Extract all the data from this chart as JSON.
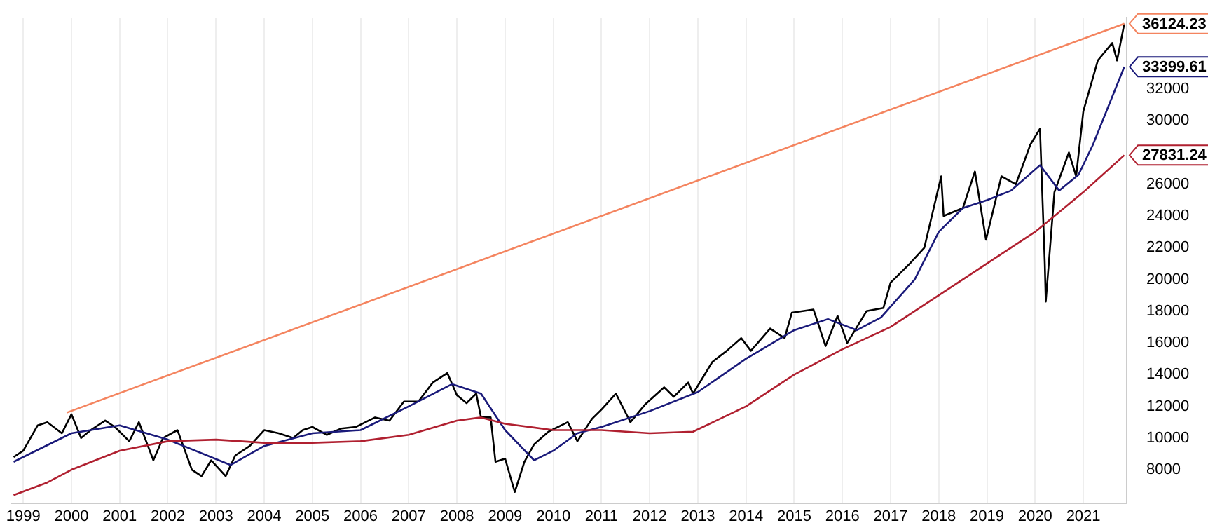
{
  "chart_data": {
    "type": "line",
    "xlim": [
      1998.75,
      2021.9
    ],
    "xticks": [
      {
        "value": 1999,
        "label": "1999"
      },
      {
        "value": 2000,
        "label": "2000"
      },
      {
        "value": 2001,
        "label": "2001"
      },
      {
        "value": 2002,
        "label": "2002"
      },
      {
        "value": 2003,
        "label": "2003"
      },
      {
        "value": 2004,
        "label": "2004"
      },
      {
        "value": 2005,
        "label": "2005"
      },
      {
        "value": 2006,
        "label": "2006"
      },
      {
        "value": 2007,
        "label": "2007"
      },
      {
        "value": 2008,
        "label": "2008"
      },
      {
        "value": 2009,
        "label": "2009"
      },
      {
        "value": 2010,
        "label": "2010"
      },
      {
        "value": 2011,
        "label": "2011"
      },
      {
        "value": 2012,
        "label": "2012"
      },
      {
        "value": 2013,
        "label": "2013"
      },
      {
        "value": 2014,
        "label": "2014"
      },
      {
        "value": 2015,
        "label": "2015"
      },
      {
        "value": 2016,
        "label": "2016"
      },
      {
        "value": 2017,
        "label": "2017"
      },
      {
        "value": 2018,
        "label": "2018"
      },
      {
        "value": 2019,
        "label": "2019"
      },
      {
        "value": 2020,
        "label": "2020"
      },
      {
        "value": 2021,
        "label": "2021"
      }
    ],
    "ylim": [
      5900,
      36500
    ],
    "yticks": [
      8000,
      10000,
      12000,
      14000,
      16000,
      18000,
      20000,
      22000,
      24000,
      26000,
      30000,
      32000
    ],
    "grid": "x",
    "marker": "none",
    "line_style": "solid",
    "series": [
      {
        "color": "#f4845f",
        "x": [
          1999.9,
          2021.85
        ],
        "values": [
          11600,
          36124.23
        ],
        "value_labels": [
          null,
          "36124.23"
        ]
      },
      {
        "color": "#b02030",
        "x": [
          1998.8,
          1999.5,
          2000.0,
          2001.0,
          2002.0,
          2003.0,
          2004.0,
          2005.0,
          2006.0,
          2007.0,
          2008.0,
          2008.5,
          2009.0,
          2010.0,
          2011.0,
          2012.0,
          2012.9,
          2014.0,
          2015.0,
          2016.0,
          2017.0,
          2018.0,
          2019.0,
          2020.0,
          2021.0,
          2021.85
        ],
        "values": [
          6400,
          7200,
          8000,
          9200,
          9800,
          9900,
          9700,
          9700,
          9800,
          10200,
          11100,
          11300,
          10900,
          10500,
          10500,
          10300,
          10400,
          12000,
          14000,
          15600,
          17000,
          19000,
          21000,
          23000,
          25500,
          27831.24
        ],
        "value_labels": [
          null,
          null,
          null,
          null,
          null,
          null,
          null,
          null,
          null,
          null,
          null,
          null,
          null,
          null,
          null,
          null,
          null,
          null,
          null,
          null,
          null,
          null,
          null,
          null,
          null,
          "27831.24"
        ]
      },
      {
        "color": "#1a1a7a",
        "x": [
          1998.8,
          2000.0,
          2001.0,
          2002.0,
          2003.3,
          2004.0,
          2005.0,
          2006.0,
          2007.0,
          2007.9,
          2008.5,
          2009.0,
          2009.6,
          2010.0,
          2010.5,
          2011.0,
          2012.0,
          2013.0,
          2014.0,
          2015.0,
          2015.7,
          2016.3,
          2016.8,
          2017.5,
          2018.0,
          2018.5,
          2019.0,
          2019.5,
          2020.1,
          2020.5,
          2020.9,
          2021.2,
          2021.85
        ],
        "values": [
          8500,
          10300,
          10800,
          9900,
          8300,
          9500,
          10300,
          10500,
          12000,
          13400,
          12800,
          10500,
          8600,
          9200,
          10300,
          10700,
          11700,
          12900,
          15000,
          16800,
          17500,
          16800,
          17600,
          20000,
          23000,
          24500,
          25000,
          25600,
          27200,
          25600,
          26600,
          28500,
          33399.61
        ],
        "value_labels": [
          null,
          null,
          null,
          null,
          null,
          null,
          null,
          null,
          null,
          null,
          null,
          null,
          null,
          null,
          null,
          null,
          null,
          null,
          null,
          null,
          null,
          null,
          null,
          null,
          null,
          null,
          null,
          null,
          null,
          null,
          null,
          null,
          "33399.61"
        ]
      },
      {
        "color": "#000000",
        "x": [
          1998.8,
          1999.0,
          1999.3,
          1999.5,
          1999.8,
          2000.0,
          2000.2,
          2000.4,
          2000.7,
          2000.9,
          2001.2,
          2001.4,
          2001.7,
          2001.9,
          2002.2,
          2002.5,
          2002.7,
          2002.9,
          2003.2,
          2003.4,
          2003.7,
          2004.0,
          2004.3,
          2004.6,
          2004.8,
          2005.0,
          2005.3,
          2005.6,
          2005.9,
          2006.3,
          2006.6,
          2006.9,
          2007.2,
          2007.5,
          2007.8,
          2008.0,
          2008.2,
          2008.4,
          2008.5,
          2008.7,
          2008.8,
          2009.0,
          2009.2,
          2009.4,
          2009.6,
          2009.9,
          2010.3,
          2010.5,
          2010.8,
          2011.0,
          2011.3,
          2011.6,
          2011.9,
          2012.3,
          2012.5,
          2012.8,
          2012.9,
          2013.3,
          2013.6,
          2013.9,
          2014.1,
          2014.5,
          2014.8,
          2014.95,
          2015.4,
          2015.65,
          2015.9,
          2016.1,
          2016.5,
          2016.85,
          2017.0,
          2017.4,
          2017.7,
          2018.05,
          2018.1,
          2018.5,
          2018.75,
          2018.98,
          2019.3,
          2019.6,
          2019.9,
          2020.1,
          2020.2,
          2020.22,
          2020.4,
          2020.7,
          2020.85,
          2021.0,
          2021.3,
          2021.6,
          2021.7,
          2021.85
        ],
        "values": [
          8800,
          9200,
          10800,
          11000,
          10300,
          11500,
          10000,
          10500,
          11100,
          10700,
          9800,
          11000,
          8600,
          10000,
          10500,
          8000,
          7600,
          8600,
          7600,
          8900,
          9500,
          10500,
          10300,
          10000,
          10500,
          10700,
          10200,
          10600,
          10700,
          11300,
          11100,
          12300,
          12300,
          13500,
          14100,
          12700,
          12200,
          12800,
          11300,
          11300,
          8500,
          8700,
          6600,
          8500,
          9600,
          10400,
          11000,
          9800,
          11200,
          11800,
          12800,
          11000,
          12100,
          13200,
          12600,
          13500,
          12800,
          14800,
          15500,
          16300,
          15500,
          16900,
          16300,
          17900,
          18100,
          15800,
          17700,
          16000,
          18000,
          18200,
          19800,
          21000,
          22000,
          26500,
          24000,
          24500,
          26800,
          22500,
          26500,
          26000,
          28500,
          29500,
          21000,
          18600,
          25500,
          28000,
          26500,
          30600,
          33800,
          34900,
          33800,
          36124.23
        ]
      }
    ]
  }
}
